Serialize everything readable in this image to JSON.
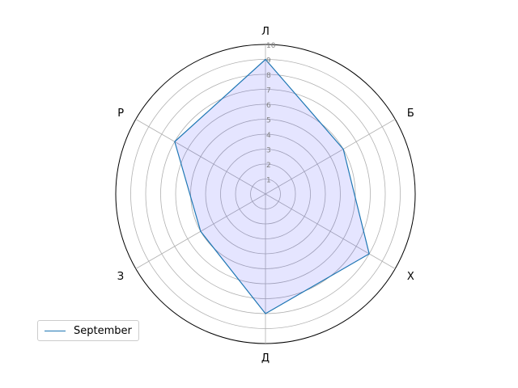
{
  "chart_data": {
    "type": "radar",
    "categories": [
      "Л",
      "Б",
      "Х",
      "Д",
      "З",
      "Р"
    ],
    "series": [
      {
        "name": "September",
        "values": [
          9,
          6,
          8,
          8,
          5,
          7
        ]
      }
    ],
    "rlim": [
      0,
      10
    ],
    "rticks": [
      "1",
      "2",
      "3",
      "4",
      "5",
      "6",
      "7",
      "8",
      "9",
      "10"
    ],
    "grid": true,
    "legend_position": "lower-left",
    "colors": {
      "line": "#1f77b4",
      "fill": "#0000ff",
      "grid": "#b0b0b0",
      "outline": "#000000",
      "tick": "#808080"
    }
  }
}
